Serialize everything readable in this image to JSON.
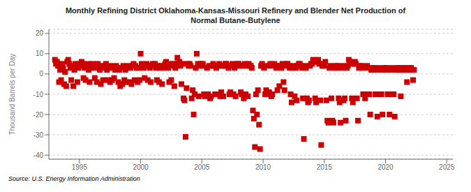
{
  "chart_data": {
    "type": "scatter",
    "title": "Monthly Refining District Oklahoma-Kansas-Missouri Refinery and Blender Net Production of\nNormal Butane-Butylene",
    "ylabel": "Thousand Barrels per Day",
    "annotations": [
      "Source: U.S. Energy Information Administration"
    ],
    "xlim": [
      1992.5,
      2025.5
    ],
    "ylim": [
      -42,
      22
    ],
    "xticks": [
      1995,
      2000,
      2005,
      2010,
      2015,
      2020,
      2025
    ],
    "yticks": [
      -40,
      -30,
      -20,
      -10,
      0,
      10,
      20
    ],
    "grid": "y",
    "color": "#CC0000",
    "marker": "square",
    "x": [
      1993.0,
      1993.08,
      1993.17,
      1993.25,
      1993.33,
      1993.42,
      1993.5,
      1993.58,
      1993.67,
      1993.75,
      1993.83,
      1993.92,
      1994.0,
      1994.08,
      1994.17,
      1994.25,
      1994.33,
      1994.42,
      1994.5,
      1994.58,
      1994.67,
      1994.75,
      1994.83,
      1994.92,
      1995.0,
      1995.08,
      1995.17,
      1995.25,
      1995.33,
      1995.42,
      1995.5,
      1995.58,
      1995.67,
      1995.75,
      1995.83,
      1995.92,
      1996.0,
      1996.08,
      1996.17,
      1996.25,
      1996.33,
      1996.42,
      1996.5,
      1996.58,
      1996.67,
      1996.75,
      1996.83,
      1996.92,
      1997.0,
      1997.08,
      1997.17,
      1997.25,
      1997.33,
      1997.42,
      1997.5,
      1997.58,
      1997.67,
      1997.75,
      1997.83,
      1997.92,
      1998.0,
      1998.08,
      1998.17,
      1998.25,
      1998.33,
      1998.42,
      1998.5,
      1998.58,
      1998.67,
      1998.75,
      1998.83,
      1998.92,
      1999.0,
      1999.08,
      1999.17,
      1999.25,
      1999.33,
      1999.42,
      1999.5,
      1999.58,
      1999.67,
      1999.75,
      1999.83,
      1999.92,
      2000.0,
      2000.08,
      2000.17,
      2000.25,
      2000.33,
      2000.42,
      2000.5,
      2000.58,
      2000.67,
      2000.75,
      2000.83,
      2000.92,
      2001.0,
      2001.08,
      2001.17,
      2001.25,
      2001.33,
      2001.42,
      2001.5,
      2001.58,
      2001.67,
      2001.75,
      2001.83,
      2001.92,
      2002.0,
      2002.08,
      2002.17,
      2002.25,
      2002.33,
      2002.42,
      2002.5,
      2002.58,
      2002.67,
      2002.75,
      2002.83,
      2002.92,
      2003.0,
      2003.08,
      2003.17,
      2003.25,
      2003.33,
      2003.42,
      2003.5,
      2003.58,
      2003.67,
      2003.75,
      2003.83,
      2003.92,
      2004.0,
      2004.08,
      2004.17,
      2004.25,
      2004.33,
      2004.42,
      2004.5,
      2004.58,
      2004.67,
      2004.75,
      2004.83,
      2004.92,
      2005.0,
      2005.08,
      2005.17,
      2005.25,
      2005.33,
      2005.42,
      2005.5,
      2005.58,
      2005.67,
      2005.75,
      2005.83,
      2005.92,
      2006.0,
      2006.08,
      2006.17,
      2006.25,
      2006.33,
      2006.42,
      2006.5,
      2006.58,
      2006.67,
      2006.75,
      2006.83,
      2006.92,
      2007.0,
      2007.08,
      2007.17,
      2007.25,
      2007.33,
      2007.42,
      2007.5,
      2007.58,
      2007.67,
      2007.75,
      2007.83,
      2007.92,
      2008.0,
      2008.08,
      2008.17,
      2008.25,
      2008.33,
      2008.42,
      2008.5,
      2008.58,
      2008.67,
      2008.75,
      2008.83,
      2008.92,
      2009.0,
      2009.08,
      2009.17,
      2009.25,
      2009.33,
      2009.42,
      2009.5,
      2009.58,
      2009.67,
      2009.75,
      2009.83,
      2009.92,
      2010.0,
      2010.08,
      2010.17,
      2010.25,
      2010.33,
      2010.42,
      2010.5,
      2010.58,
      2010.67,
      2010.75,
      2010.83,
      2010.92,
      2011.0,
      2011.08,
      2011.17,
      2011.25,
      2011.33,
      2011.42,
      2011.5,
      2011.58,
      2011.67,
      2011.75,
      2011.83,
      2011.92,
      2012.0,
      2012.08,
      2012.17,
      2012.25,
      2012.33,
      2012.42,
      2012.5,
      2012.58,
      2012.67,
      2012.75,
      2012.83,
      2012.92,
      2013.0,
      2013.08,
      2013.17,
      2013.25,
      2013.33,
      2013.42,
      2013.5,
      2013.58,
      2013.67,
      2013.75,
      2013.83,
      2013.92,
      2014.0,
      2014.08,
      2014.17,
      2014.25,
      2014.33,
      2014.42,
      2014.5,
      2014.58,
      2014.67,
      2014.75,
      2014.83,
      2014.92,
      2015.0,
      2015.08,
      2015.17,
      2015.25,
      2015.33,
      2015.42,
      2015.5,
      2015.58,
      2015.67,
      2015.75,
      2015.83,
      2015.92,
      2016.0,
      2016.08,
      2016.17,
      2016.25,
      2016.33,
      2016.42,
      2016.5,
      2016.58,
      2016.67,
      2016.75,
      2016.83,
      2016.92,
      2017.0,
      2017.08,
      2017.17,
      2017.25,
      2017.33,
      2017.42,
      2017.5,
      2017.58,
      2017.67,
      2017.75,
      2017.83,
      2017.92,
      2018.0,
      2018.08,
      2018.17,
      2018.25,
      2018.33,
      2018.42,
      2018.5,
      2018.58,
      2018.67,
      2018.75,
      2018.83,
      2018.92,
      2019.0,
      2019.08,
      2019.17,
      2019.25,
      2019.33,
      2019.42,
      2019.5,
      2019.58,
      2019.67,
      2019.75,
      2019.83,
      2019.92,
      2020.0,
      2020.08,
      2020.17,
      2020.25,
      2020.33,
      2020.42,
      2020.5,
      2020.58,
      2020.67,
      2020.75,
      2020.83,
      2020.92,
      2021.0,
      2021.08,
      2021.17,
      2021.25,
      2021.33,
      2021.42,
      2021.5,
      2021.58,
      2021.67,
      2021.75,
      2021.83,
      2021.92,
      2022.0,
      2022.08,
      2022.17,
      2022.25,
      2022.33
    ],
    "values": [
      7,
      5,
      6,
      4,
      -4,
      2,
      -3,
      5,
      3,
      -5,
      1,
      -6,
      6,
      7,
      5,
      3,
      -3,
      4,
      -6,
      2,
      5,
      4,
      -4,
      3,
      5,
      4,
      6,
      5,
      -2,
      3,
      -3,
      4,
      5,
      2,
      -4,
      3,
      4,
      5,
      3,
      -2,
      4,
      -4,
      5,
      3,
      2,
      -5,
      4,
      -3,
      3,
      4,
      5,
      2,
      -3,
      3,
      -4,
      4,
      -3,
      3,
      -2,
      2,
      4,
      3,
      -4,
      2,
      -6,
      3,
      -5,
      4,
      -3,
      2,
      -4,
      3,
      4,
      -4,
      3,
      -5,
      4,
      5,
      -3,
      4,
      3,
      -4,
      3,
      -3,
      10,
      5,
      4,
      3,
      -2,
      4,
      5,
      -3,
      4,
      3,
      -4,
      4,
      5,
      4,
      5,
      3,
      -3,
      4,
      -4,
      3,
      4,
      -5,
      3,
      4,
      5,
      6,
      4,
      3,
      -4,
      5,
      -3,
      4,
      5,
      -6,
      3,
      5,
      8,
      5,
      6,
      4,
      -5,
      5,
      -12,
      -13,
      -31,
      -7,
      5,
      4,
      5,
      4,
      -12,
      -8,
      -20,
      -10,
      3,
      10,
      5,
      -11,
      4,
      5,
      4,
      5,
      -10,
      -11,
      -10,
      3,
      -10,
      4,
      -12,
      -11,
      4,
      5,
      4,
      -10,
      3,
      -10,
      4,
      5,
      -11,
      -9,
      4,
      -11,
      4,
      5,
      5,
      4,
      3,
      -10,
      -9,
      4,
      5,
      -10,
      3,
      -11,
      4,
      5,
      5,
      4,
      -9,
      -10,
      4,
      -12,
      5,
      -10,
      4,
      -11,
      5,
      4,
      4,
      3,
      -18,
      -22,
      -36,
      -10,
      -20,
      -8,
      -25,
      -37,
      4,
      5,
      4,
      3,
      -10,
      -8,
      -10,
      4,
      -9,
      5,
      -11,
      -10,
      4,
      5,
      4,
      3,
      -8,
      4,
      -6,
      4,
      3,
      5,
      -4,
      -8,
      4,
      5,
      5,
      4,
      3,
      -10,
      -14,
      3,
      4,
      -11,
      3,
      -13,
      4,
      5,
      5,
      4,
      3,
      -12,
      -32,
      4,
      3,
      -12,
      -14,
      -13,
      4,
      5,
      5,
      7,
      6,
      -12,
      -14,
      6,
      7,
      5,
      -13,
      -35,
      4,
      5,
      4,
      6,
      -13,
      -23,
      -24,
      3,
      4,
      -12,
      -23,
      -24,
      3,
      4,
      3,
      4,
      -12,
      -14,
      -24,
      3,
      4,
      -13,
      -12,
      -23,
      3,
      4,
      7,
      6,
      5,
      -12,
      -14,
      5,
      6,
      5,
      -12,
      -23,
      3,
      4,
      3,
      4,
      -10,
      -10,
      -12,
      3,
      4,
      -10,
      -10,
      -20,
      2,
      3,
      2,
      3,
      -10,
      -10,
      -21,
      2,
      3,
      -10,
      -10,
      -20,
      2,
      3,
      2,
      3,
      -10,
      -10,
      -20,
      2,
      3,
      -10,
      -10,
      -21,
      2,
      3,
      2,
      3,
      2,
      -11,
      2,
      3,
      2,
      3,
      2,
      -4,
      2,
      3,
      2,
      3,
      2,
      -3,
      2
    ]
  }
}
